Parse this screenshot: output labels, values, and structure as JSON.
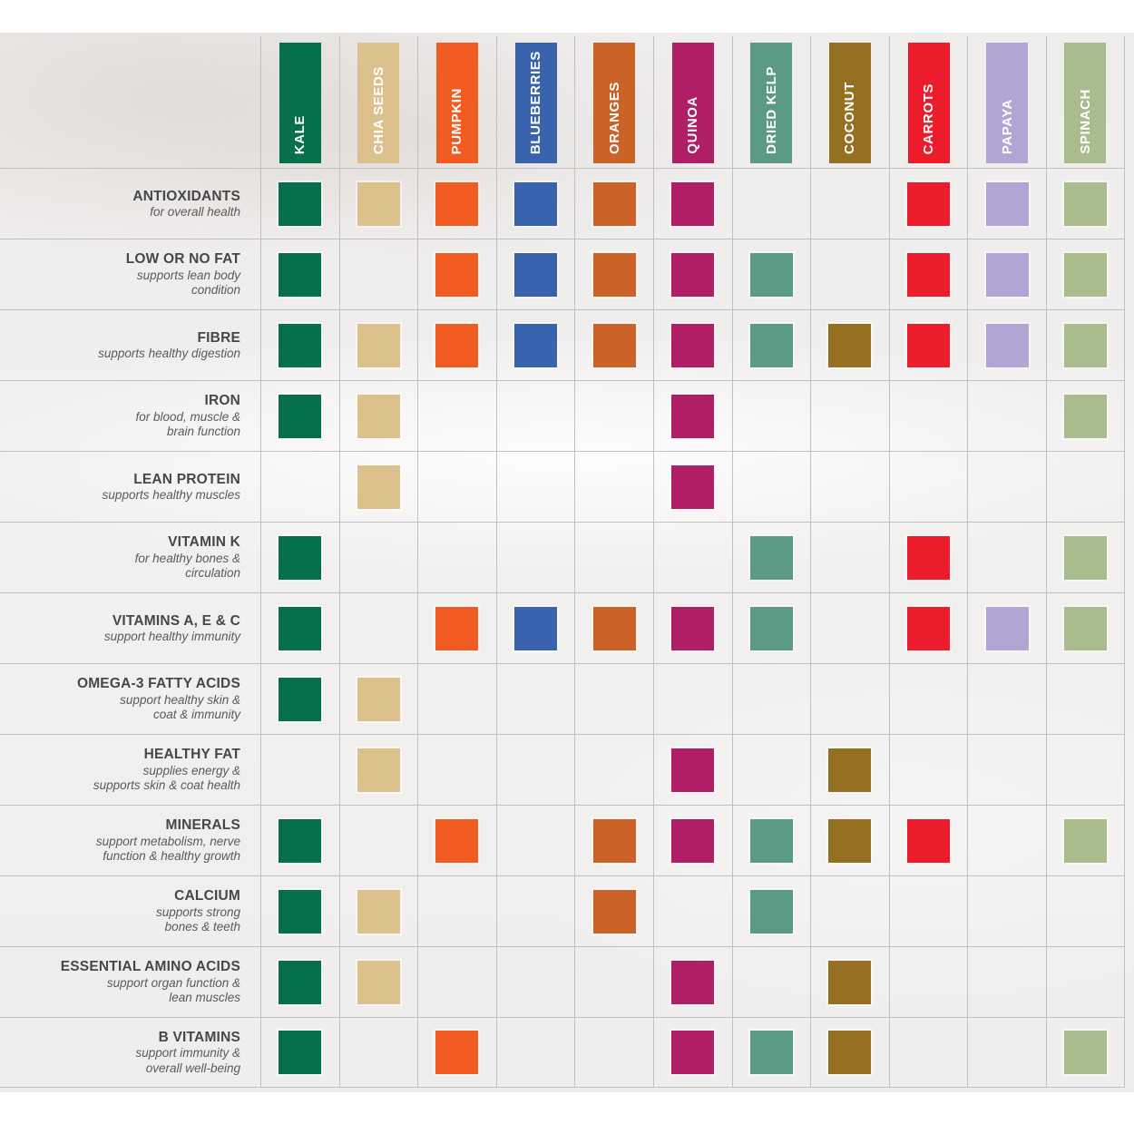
{
  "grid": {
    "line_color": "#c2c0be"
  },
  "text_colors": {
    "row_title": "#474747",
    "row_subtitle": "#5a5a5a",
    "header_text": "#ffffff"
  },
  "chart_data": {
    "type": "heatmap",
    "description": "Food vs nutrient matrix; a colored square means the food provides that nutrient",
    "legend_position": "none",
    "columns": [
      {
        "label": "KALE",
        "color": "#06704E"
      },
      {
        "label": "CHIA SEEDS",
        "color": "#DCC18C"
      },
      {
        "label": "PUMPKIN",
        "color": "#F15B22"
      },
      {
        "label": "BLUEBERRIES",
        "color": "#3A63AE"
      },
      {
        "label": "ORANGES",
        "color": "#CB6227"
      },
      {
        "label": "QUINOA",
        "color": "#B01E66"
      },
      {
        "label": "DRIED KELP",
        "color": "#5B9B83"
      },
      {
        "label": "COCONUT",
        "color": "#956F22"
      },
      {
        "label": "CARROTS",
        "color": "#EC1C2D"
      },
      {
        "label": "PAPAYA",
        "color": "#B2A4D4"
      },
      {
        "label": "SPINACH",
        "color": "#A9BC8E"
      }
    ],
    "rows": [
      {
        "title": "ANTIOXIDANTS",
        "subtitle": "for overall health",
        "cells": [
          1,
          1,
          1,
          1,
          1,
          1,
          0,
          0,
          1,
          1,
          1
        ]
      },
      {
        "title": "LOW OR NO FAT",
        "subtitle": "supports lean body\ncondition",
        "cells": [
          1,
          0,
          1,
          1,
          1,
          1,
          1,
          0,
          1,
          1,
          1
        ]
      },
      {
        "title": "FIBRE",
        "subtitle": "supports healthy digestion",
        "cells": [
          1,
          1,
          1,
          1,
          1,
          1,
          1,
          1,
          1,
          1,
          1
        ]
      },
      {
        "title": "IRON",
        "subtitle": "for blood, muscle &\nbrain function",
        "cells": [
          1,
          1,
          0,
          0,
          0,
          1,
          0,
          0,
          0,
          0,
          1
        ]
      },
      {
        "title": "LEAN PROTEIN",
        "subtitle": "supports healthy muscles",
        "cells": [
          0,
          1,
          0,
          0,
          0,
          1,
          0,
          0,
          0,
          0,
          0
        ]
      },
      {
        "title": "VITAMIN K",
        "subtitle": "for healthy bones &\ncirculation",
        "cells": [
          1,
          0,
          0,
          0,
          0,
          0,
          1,
          0,
          1,
          0,
          1
        ]
      },
      {
        "title": "VITAMINS A, E & C",
        "subtitle": "support healthy immunity",
        "cells": [
          1,
          0,
          1,
          1,
          1,
          1,
          1,
          0,
          1,
          1,
          1
        ]
      },
      {
        "title": "OMEGA-3 FATTY ACIDS",
        "subtitle": "support healthy skin &\ncoat & immunity",
        "cells": [
          1,
          1,
          0,
          0,
          0,
          0,
          0,
          0,
          0,
          0,
          0
        ]
      },
      {
        "title": "HEALTHY FAT",
        "subtitle": "supplies energy &\nsupports skin & coat health",
        "cells": [
          0,
          1,
          0,
          0,
          0,
          1,
          0,
          1,
          0,
          0,
          0
        ]
      },
      {
        "title": "MINERALS",
        "subtitle": "support metabolism, nerve\nfunction & healthy growth",
        "cells": [
          1,
          0,
          1,
          0,
          1,
          1,
          1,
          1,
          1,
          0,
          1
        ]
      },
      {
        "title": "CALCIUM",
        "subtitle": "supports strong\nbones & teeth",
        "cells": [
          1,
          1,
          0,
          0,
          1,
          0,
          1,
          0,
          0,
          0,
          0
        ]
      },
      {
        "title": "ESSENTIAL AMINO ACIDS",
        "subtitle": "support organ function &\nlean muscles",
        "cells": [
          1,
          1,
          0,
          0,
          0,
          1,
          0,
          1,
          0,
          0,
          0
        ]
      },
      {
        "title": "B VITAMINS",
        "subtitle": "support immunity &\noverall well-being",
        "cells": [
          1,
          0,
          1,
          0,
          0,
          1,
          1,
          1,
          0,
          0,
          1
        ]
      }
    ]
  }
}
